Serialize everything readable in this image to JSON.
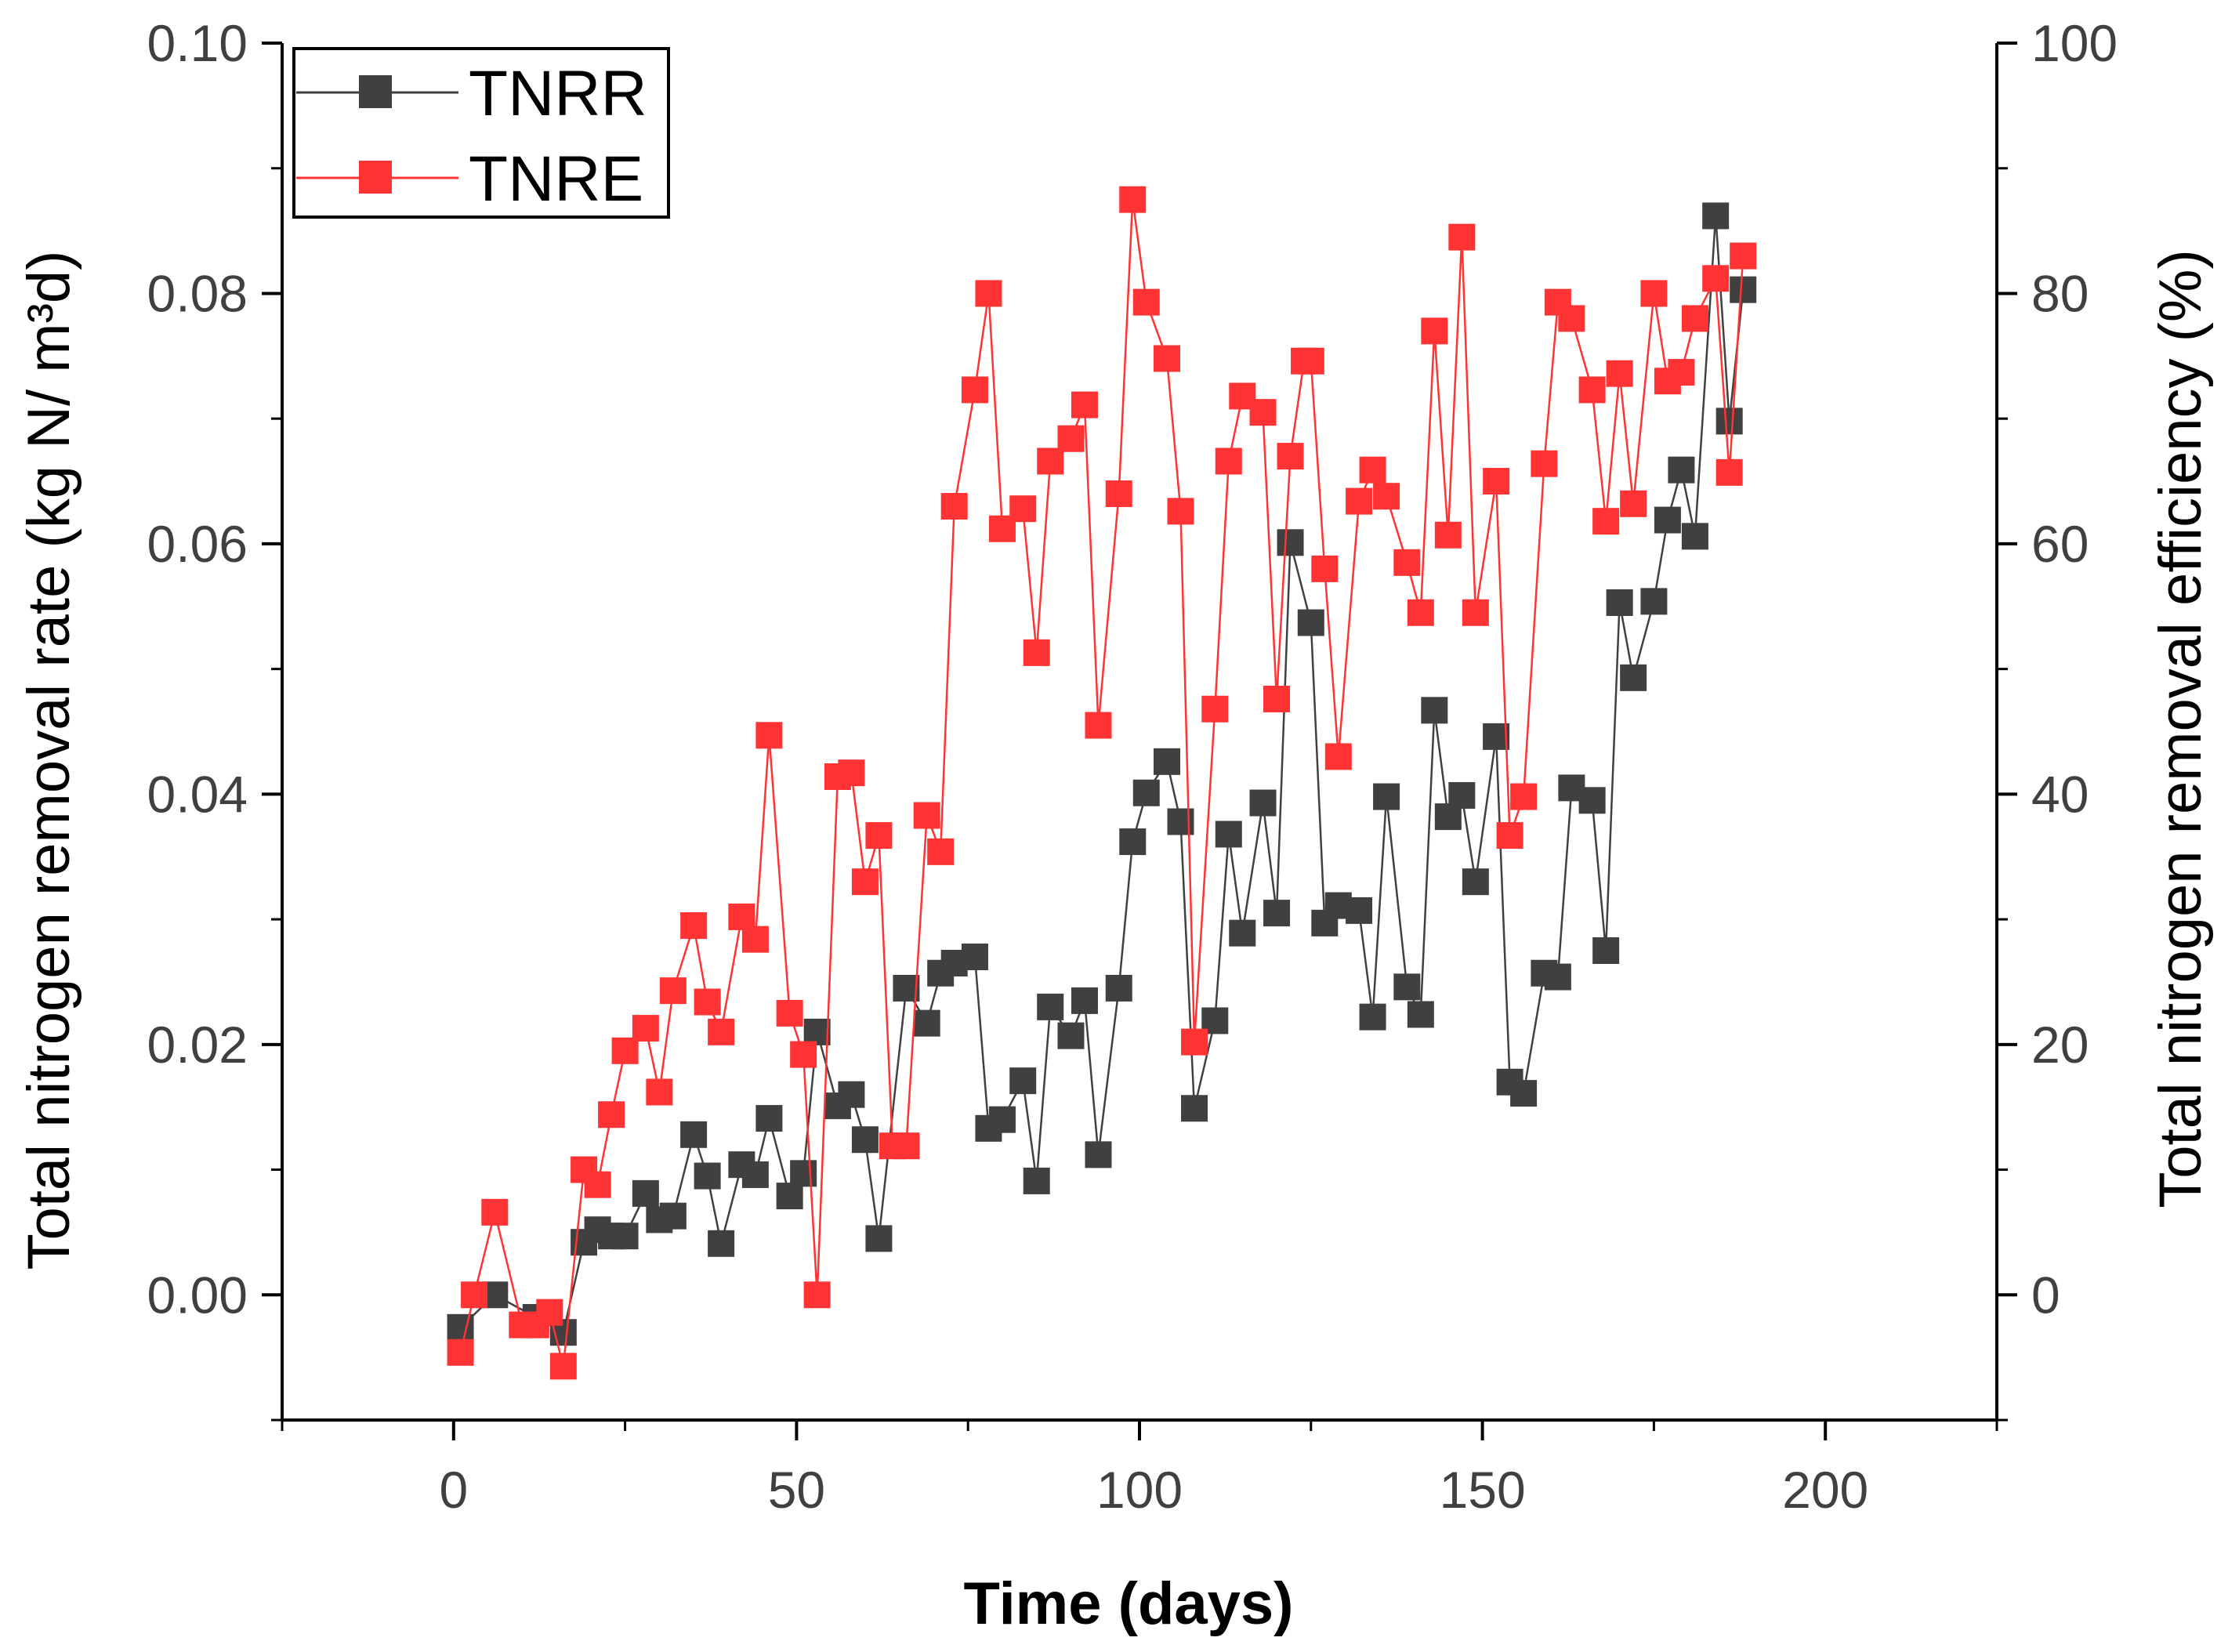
{
  "chart_data": {
    "type": "scatter",
    "xlabel": "Time (days)",
    "ylabel_left": "Total nitrogen removal rate (kg N/ m³d)",
    "ylabel_right": "Total nitrogen removal efficiency (%)",
    "xlim": [
      -25,
      225
    ],
    "ylim_left": [
      -0.01,
      0.1
    ],
    "ylim_right": [
      -10,
      100
    ],
    "x_ticks": [
      "0",
      "50",
      "100",
      "150",
      "200"
    ],
    "y_left_ticks": [
      "0.00",
      "0.02",
      "0.04",
      "0.06",
      "0.08",
      "0.10"
    ],
    "y_right_ticks": [
      "0",
      "20",
      "40",
      "60",
      "80",
      "100"
    ],
    "grid": false,
    "legend_position": "top-left",
    "series": [
      {
        "name": "TNRR",
        "axis": "left",
        "color": "#404040",
        "points": [
          [
            1,
            -0.0026
          ],
          [
            6,
            0.0
          ],
          [
            12,
            -0.0018
          ],
          [
            16,
            -0.003
          ],
          [
            19,
            0.0042
          ],
          [
            21,
            0.0052
          ],
          [
            23,
            0.0047
          ],
          [
            25,
            0.0047
          ],
          [
            28,
            0.0081
          ],
          [
            30,
            0.006
          ],
          [
            32,
            0.0063
          ],
          [
            35,
            0.0128
          ],
          [
            37,
            0.0095
          ],
          [
            39,
            0.0041
          ],
          [
            42,
            0.0104
          ],
          [
            44,
            0.0096
          ],
          [
            46,
            0.0141
          ],
          [
            49,
            0.0079
          ],
          [
            51,
            0.0097
          ],
          [
            53,
            0.021
          ],
          [
            56,
            0.0151
          ],
          [
            58,
            0.016
          ],
          [
            60,
            0.0124
          ],
          [
            62,
            0.0045
          ],
          [
            66,
            0.0245
          ],
          [
            69,
            0.0217
          ],
          [
            71,
            0.0257
          ],
          [
            73,
            0.0265
          ],
          [
            76,
            0.027
          ],
          [
            78,
            0.0133
          ],
          [
            80,
            0.014
          ],
          [
            83,
            0.0171
          ],
          [
            85,
            0.0091
          ],
          [
            87,
            0.023
          ],
          [
            90,
            0.0207
          ],
          [
            92,
            0.0235
          ],
          [
            94,
            0.0112
          ],
          [
            97,
            0.0245
          ],
          [
            99,
            0.0362
          ],
          [
            101,
            0.0401
          ],
          [
            104,
            0.0426
          ],
          [
            106,
            0.0378
          ],
          [
            108,
            0.0149
          ],
          [
            111,
            0.0219
          ],
          [
            113,
            0.0368
          ],
          [
            115,
            0.0289
          ],
          [
            118,
            0.0393
          ],
          [
            120,
            0.0305
          ],
          [
            122,
            0.0601
          ],
          [
            125,
            0.0537
          ],
          [
            127,
            0.0297
          ],
          [
            129,
            0.0311
          ],
          [
            132,
            0.0307
          ],
          [
            134,
            0.0222
          ],
          [
            136,
            0.0398
          ],
          [
            139,
            0.0246
          ],
          [
            141,
            0.0224
          ],
          [
            143,
            0.0467
          ],
          [
            145,
            0.0382
          ],
          [
            147,
            0.0399
          ],
          [
            149,
            0.033
          ],
          [
            152,
            0.0446
          ],
          [
            154,
            0.017
          ],
          [
            156,
            0.0161
          ],
          [
            159,
            0.0257
          ],
          [
            161,
            0.0254
          ],
          [
            163,
            0.0405
          ],
          [
            166,
            0.0395
          ],
          [
            168,
            0.0275
          ],
          [
            170,
            0.0553
          ],
          [
            172,
            0.0493
          ],
          [
            175,
            0.0554
          ],
          [
            177,
            0.0619
          ],
          [
            179,
            0.0659
          ],
          [
            181,
            0.0606
          ],
          [
            184,
            0.0862
          ],
          [
            186,
            0.0698
          ],
          [
            188,
            0.0803
          ]
        ]
      },
      {
        "name": "TNRE",
        "axis": "right",
        "color": "#ff3333",
        "points": [
          [
            1,
            -4.6
          ],
          [
            3,
            0.0
          ],
          [
            6,
            6.6
          ],
          [
            10,
            -2.4
          ],
          [
            12,
            -2.4
          ],
          [
            14,
            -1.4
          ],
          [
            16,
            -5.7
          ],
          [
            19,
            10.0
          ],
          [
            21,
            8.8
          ],
          [
            23,
            14.4
          ],
          [
            25,
            19.5
          ],
          [
            28,
            21.3
          ],
          [
            30,
            16.2
          ],
          [
            32,
            24.3
          ],
          [
            35,
            29.5
          ],
          [
            37,
            23.4
          ],
          [
            39,
            21.0
          ],
          [
            42,
            30.2
          ],
          [
            44,
            28.4
          ],
          [
            46,
            44.7
          ],
          [
            49,
            22.5
          ],
          [
            51,
            19.2
          ],
          [
            53,
            0.0
          ],
          [
            56,
            41.4
          ],
          [
            58,
            41.7
          ],
          [
            60,
            33.0
          ],
          [
            62,
            36.7
          ],
          [
            64,
            11.9
          ],
          [
            66,
            11.9
          ],
          [
            69,
            38.3
          ],
          [
            71,
            35.4
          ],
          [
            73,
            63.0
          ],
          [
            76,
            72.3
          ],
          [
            78,
            80.0
          ],
          [
            80,
            61.2
          ],
          [
            83,
            62.8
          ],
          [
            85,
            51.3
          ],
          [
            87,
            66.6
          ],
          [
            90,
            68.4
          ],
          [
            92,
            71.1
          ],
          [
            94,
            45.5
          ],
          [
            97,
            64.0
          ],
          [
            99,
            87.5
          ],
          [
            101,
            79.3
          ],
          [
            104,
            74.8
          ],
          [
            106,
            62.6
          ],
          [
            108,
            20.2
          ],
          [
            111,
            46.8
          ],
          [
            113,
            66.6
          ],
          [
            115,
            71.8
          ],
          [
            118,
            70.5
          ],
          [
            120,
            47.6
          ],
          [
            122,
            67.0
          ],
          [
            124,
            74.6
          ],
          [
            125,
            74.6
          ],
          [
            127,
            58.0
          ],
          [
            129,
            43.0
          ],
          [
            132,
            63.4
          ],
          [
            134,
            65.9
          ],
          [
            136,
            63.8
          ],
          [
            139,
            58.5
          ],
          [
            141,
            54.5
          ],
          [
            143,
            77.0
          ],
          [
            145,
            60.7
          ],
          [
            147,
            84.5
          ],
          [
            149,
            54.5
          ],
          [
            152,
            65.0
          ],
          [
            154,
            36.7
          ],
          [
            156,
            39.8
          ],
          [
            159,
            66.4
          ],
          [
            161,
            79.3
          ],
          [
            163,
            78.0
          ],
          [
            166,
            72.3
          ],
          [
            168,
            61.8
          ],
          [
            170,
            73.6
          ],
          [
            172,
            63.2
          ],
          [
            175,
            80.0
          ],
          [
            177,
            73.0
          ],
          [
            179,
            73.7
          ],
          [
            181,
            78.0
          ],
          [
            184,
            81.2
          ],
          [
            186,
            65.7
          ],
          [
            188,
            83.0
          ]
        ]
      }
    ]
  }
}
